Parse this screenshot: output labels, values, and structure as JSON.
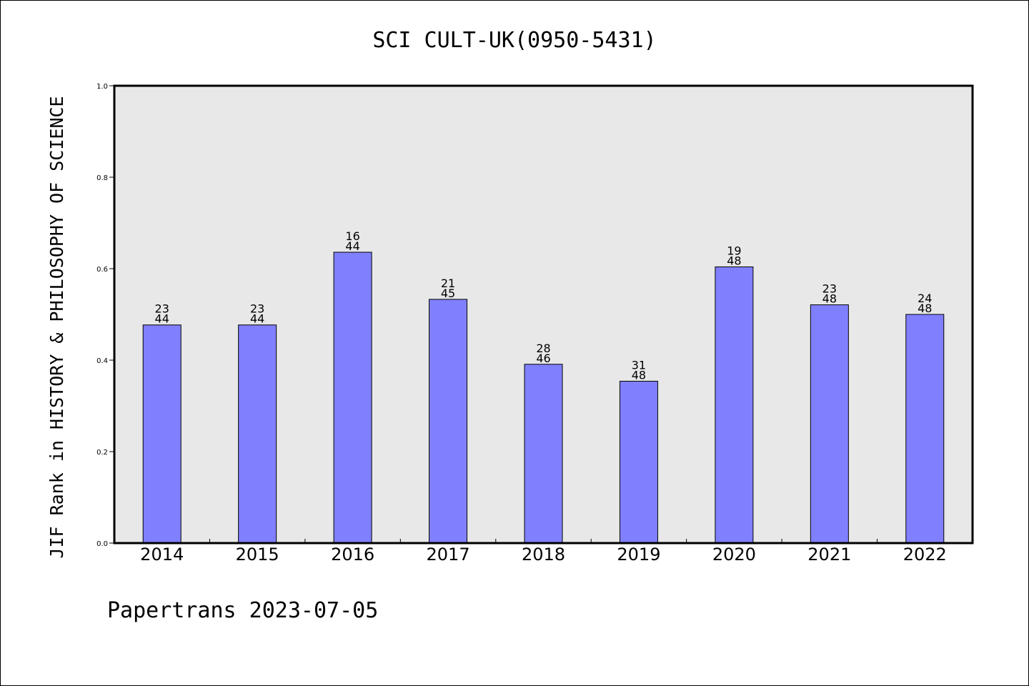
{
  "chart_data": {
    "type": "bar",
    "title": "SCI CULT-UK(0950-5431)",
    "ylabel": "JIF Rank in HISTORY & PHILOSOPHY OF SCIENCE",
    "xlabel": "",
    "ylim": [
      0,
      1.0
    ],
    "yticks": [
      "0.0",
      "0.2",
      "0.4",
      "0.6",
      "0.8",
      "1.0"
    ],
    "grid": false,
    "categories": [
      "2014",
      "2015",
      "2016",
      "2017",
      "2018",
      "2019",
      "2020",
      "2021",
      "2022"
    ],
    "values": [
      0.477,
      0.477,
      0.636,
      0.533,
      0.391,
      0.354,
      0.604,
      0.521,
      0.5
    ],
    "labels": [
      {
        "rank": "23",
        "total": "44"
      },
      {
        "rank": "23",
        "total": "44"
      },
      {
        "rank": "16",
        "total": "44"
      },
      {
        "rank": "21",
        "total": "45"
      },
      {
        "rank": "28",
        "total": "46"
      },
      {
        "rank": "31",
        "total": "48"
      },
      {
        "rank": "19",
        "total": "48"
      },
      {
        "rank": "23",
        "total": "48"
      },
      {
        "rank": "24",
        "total": "48"
      }
    ],
    "colors": {
      "bar": "#8080ff",
      "plot_background": "#e8e8e8",
      "axis": "#000000"
    }
  },
  "footer": "Papertrans 2023-07-05"
}
